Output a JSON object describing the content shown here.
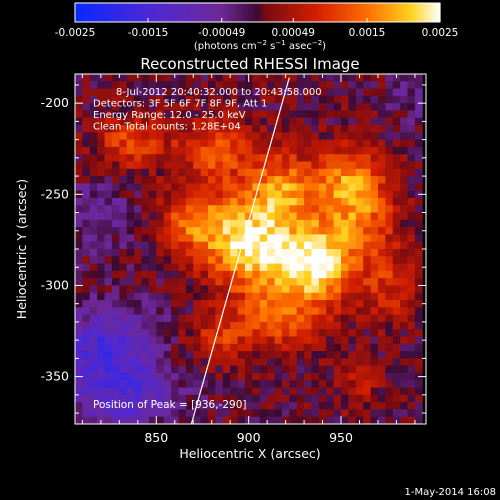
{
  "chart_data": {
    "type": "heatmap",
    "title": "Reconstructed RHESSI Image",
    "xlabel": "Heliocentric X (arcsec)",
    "ylabel": "Heliocentric Y (arcsec)",
    "xlim": [
      806,
      996
    ],
    "ylim": [
      -376,
      -184
    ],
    "x_ticks": [
      850,
      900,
      950
    ],
    "y_ticks": [
      -200,
      -250,
      -300,
      -350
    ],
    "colorbar": {
      "ticks": [
        "-0.0025",
        "-0.0015",
        "-0.00049",
        "0.00049",
        "0.0015",
        "0.0025"
      ],
      "tick_values": [
        -0.0025,
        -0.0015,
        -0.00049,
        0.00049,
        0.0015,
        0.0025
      ],
      "range": [
        -0.0025,
        0.0025
      ],
      "units_prefix": "(photons cm",
      "units_exp1": "−2",
      "units_mid": " s",
      "units_exp2": "−1",
      "units_mid2": " asec",
      "units_exp3": "−2",
      "units_suffix": ")"
    },
    "annotations": [
      "8-Jul-2012 20:40:32.000 to 20:43:58.000",
      "Detectors: 3F 5F 6F 7F 8F 9F, Att 1",
      "Energy Range: 12.0 - 25.0 keV",
      "Clean     Total counts: 1.28E+04"
    ],
    "peak_label": "Position of Peak = [936,-290]",
    "peak": [
      936,
      -290
    ],
    "limb_line": [
      [
        869,
        -376
      ],
      [
        922,
        -186
      ]
    ],
    "sources": [
      {
        "x": 936,
        "y": -288,
        "sx": 15,
        "sy": 15,
        "amp": 0.0024
      },
      {
        "x": 901,
        "y": -279,
        "sx": 16,
        "sy": 17,
        "amp": 0.0022
      },
      {
        "x": 872,
        "y": -265,
        "sx": 13,
        "sy": 13,
        "amp": 0.0015
      },
      {
        "x": 918,
        "y": -248,
        "sx": 15,
        "sy": 14,
        "amp": 0.0016
      },
      {
        "x": 955,
        "y": -240,
        "sx": 13,
        "sy": 12,
        "amp": 0.0013
      },
      {
        "x": 960,
        "y": -262,
        "sx": 14,
        "sy": 15,
        "amp": 0.0013
      },
      {
        "x": 882,
        "y": -225,
        "sx": 14,
        "sy": 12,
        "amp": 0.0012
      },
      {
        "x": 836,
        "y": -222,
        "sx": 14,
        "sy": 10,
        "amp": 0.0011
      },
      {
        "x": 915,
        "y": -318,
        "sx": 16,
        "sy": 12,
        "amp": 0.0012
      },
      {
        "x": 978,
        "y": -300,
        "sx": 12,
        "sy": 14,
        "amp": 0.0008
      },
      {
        "x": 883,
        "y": -330,
        "sx": 12,
        "sy": 10,
        "amp": 0.0008
      },
      {
        "x": 960,
        "y": -355,
        "sx": 10,
        "sy": 10,
        "amp": 0.0005
      },
      {
        "x": 823,
        "y": -335,
        "sx": 20,
        "sy": 15,
        "amp": -0.0014
      },
      {
        "x": 833,
        "y": -362,
        "sx": 20,
        "sy": 12,
        "amp": -0.0011
      },
      {
        "x": 818,
        "y": -262,
        "sx": 12,
        "sy": 14,
        "amp": -0.0006
      },
      {
        "x": 990,
        "y": -198,
        "sx": 10,
        "sy": 10,
        "amp": -0.0004
      }
    ]
  },
  "footer": {
    "date": "1-May-2014 16:08"
  }
}
